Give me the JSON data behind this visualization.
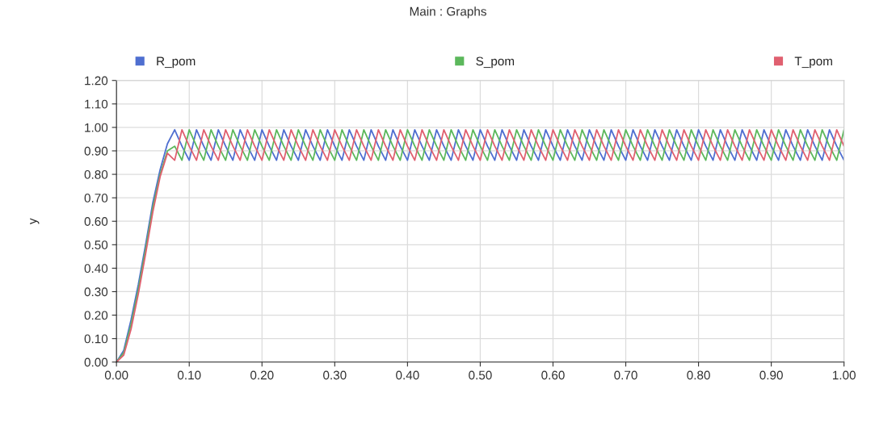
{
  "chart_data": {
    "type": "line",
    "title": "Main : Graphs",
    "ylabel": "y",
    "x": [
      0,
      0.01,
      0.02,
      0.03,
      0.04,
      0.05,
      0.06,
      0.07,
      0.08,
      0.09,
      0.1,
      0.11,
      0.12,
      0.13,
      0.14,
      0.15,
      0.16,
      0.17,
      0.18,
      0.19,
      0.2,
      0.21,
      0.22,
      0.23,
      0.24,
      0.25,
      0.26,
      0.27,
      0.28,
      0.29,
      0.3,
      0.31,
      0.32,
      0.33,
      0.34,
      0.35,
      0.36,
      0.37,
      0.38,
      0.39,
      0.4,
      0.41,
      0.42,
      0.43,
      0.44,
      0.45,
      0.46,
      0.47,
      0.48,
      0.49,
      0.5,
      0.51,
      0.52,
      0.53,
      0.54,
      0.55,
      0.56,
      0.57,
      0.58,
      0.59,
      0.6,
      0.61,
      0.62,
      0.63,
      0.64,
      0.65,
      0.66,
      0.67,
      0.68,
      0.69,
      0.7,
      0.71,
      0.72,
      0.73,
      0.74,
      0.75,
      0.76,
      0.77,
      0.78,
      0.79,
      0.8,
      0.81,
      0.82,
      0.83,
      0.84,
      0.85,
      0.86,
      0.87,
      0.88,
      0.89,
      0.9,
      0.91,
      0.92,
      0.93,
      0.94,
      0.95,
      0.96,
      0.97,
      0.98,
      0.99,
      1.0
    ],
    "series": [
      {
        "name": "R_pom",
        "color": "#4f6fd0",
        "values": [
          0,
          0.05,
          0.18,
          0.33,
          0.5,
          0.68,
          0.82,
          0.93,
          0.99,
          0.92,
          0.86,
          0.99,
          0.92,
          0.86,
          0.99,
          0.92,
          0.86,
          0.99,
          0.92,
          0.86,
          0.99,
          0.92,
          0.86,
          0.99,
          0.92,
          0.86,
          0.99,
          0.92,
          0.86,
          0.99,
          0.92,
          0.86,
          0.99,
          0.92,
          0.86,
          0.99,
          0.92,
          0.86,
          0.99,
          0.92,
          0.86,
          0.99,
          0.92,
          0.86,
          0.99,
          0.92,
          0.86,
          0.99,
          0.92,
          0.86,
          0.99,
          0.92,
          0.86,
          0.99,
          0.92,
          0.86,
          0.99,
          0.92,
          0.86,
          0.99,
          0.92,
          0.86,
          0.99,
          0.92,
          0.86,
          0.99,
          0.92,
          0.86,
          0.99,
          0.92,
          0.86,
          0.99,
          0.92,
          0.86,
          0.99,
          0.92,
          0.86,
          0.99,
          0.92,
          0.86,
          0.99,
          0.92,
          0.86,
          0.99,
          0.92,
          0.86,
          0.99,
          0.92,
          0.86,
          0.99,
          0.92,
          0.86,
          0.99,
          0.92,
          0.86,
          0.99,
          0.92,
          0.86,
          0.99,
          0.92,
          0.86
        ]
      },
      {
        "name": "S_pom",
        "color": "#5cb85c",
        "values": [
          0,
          0.04,
          0.16,
          0.31,
          0.48,
          0.66,
          0.8,
          0.9,
          0.92,
          0.86,
          0.99,
          0.92,
          0.86,
          0.99,
          0.92,
          0.86,
          0.99,
          0.92,
          0.86,
          0.99,
          0.92,
          0.86,
          0.99,
          0.92,
          0.86,
          0.99,
          0.92,
          0.86,
          0.99,
          0.92,
          0.86,
          0.99,
          0.92,
          0.86,
          0.99,
          0.92,
          0.86,
          0.99,
          0.92,
          0.86,
          0.99,
          0.92,
          0.86,
          0.99,
          0.92,
          0.86,
          0.99,
          0.92,
          0.86,
          0.99,
          0.92,
          0.86,
          0.99,
          0.92,
          0.86,
          0.99,
          0.92,
          0.86,
          0.99,
          0.92,
          0.86,
          0.99,
          0.92,
          0.86,
          0.99,
          0.92,
          0.86,
          0.99,
          0.92,
          0.86,
          0.99,
          0.92,
          0.86,
          0.99,
          0.92,
          0.86,
          0.99,
          0.92,
          0.86,
          0.99,
          0.92,
          0.86,
          0.99,
          0.92,
          0.86,
          0.99,
          0.92,
          0.86,
          0.99,
          0.92,
          0.86,
          0.99,
          0.92,
          0.86,
          0.99,
          0.92,
          0.86,
          0.99,
          0.92,
          0.86,
          0.99
        ]
      },
      {
        "name": "T_pom",
        "color": "#e06070",
        "values": [
          0,
          0.03,
          0.14,
          0.29,
          0.46,
          0.64,
          0.79,
          0.89,
          0.86,
          0.99,
          0.92,
          0.86,
          0.99,
          0.92,
          0.86,
          0.99,
          0.92,
          0.86,
          0.99,
          0.92,
          0.86,
          0.99,
          0.92,
          0.86,
          0.99,
          0.92,
          0.86,
          0.99,
          0.92,
          0.86,
          0.99,
          0.92,
          0.86,
          0.99,
          0.92,
          0.86,
          0.99,
          0.92,
          0.86,
          0.99,
          0.92,
          0.86,
          0.99,
          0.92,
          0.86,
          0.99,
          0.92,
          0.86,
          0.99,
          0.92,
          0.86,
          0.99,
          0.92,
          0.86,
          0.99,
          0.92,
          0.86,
          0.99,
          0.92,
          0.86,
          0.99,
          0.92,
          0.86,
          0.99,
          0.92,
          0.86,
          0.99,
          0.92,
          0.86,
          0.99,
          0.92,
          0.86,
          0.99,
          0.92,
          0.86,
          0.99,
          0.92,
          0.86,
          0.99,
          0.92,
          0.86,
          0.99,
          0.92,
          0.86,
          0.99,
          0.92,
          0.86,
          0.99,
          0.92,
          0.86,
          0.99,
          0.92,
          0.86,
          0.99,
          0.92,
          0.86,
          0.99,
          0.92,
          0.86,
          0.99,
          0.92
        ]
      }
    ],
    "xlim": [
      0,
      1
    ],
    "ylim": [
      0,
      1.2
    ],
    "xticks": [
      {
        "value": 0,
        "label": "0.00"
      },
      {
        "value": 0.1,
        "label": "0.10"
      },
      {
        "value": 0.2,
        "label": "0.20"
      },
      {
        "value": 0.3,
        "label": "0.30"
      },
      {
        "value": 0.4,
        "label": "0.40"
      },
      {
        "value": 0.5,
        "label": "0.50"
      },
      {
        "value": 0.6,
        "label": "0.60"
      },
      {
        "value": 0.7,
        "label": "0.70"
      },
      {
        "value": 0.8,
        "label": "0.80"
      },
      {
        "value": 0.9,
        "label": "0.90"
      },
      {
        "value": 1,
        "label": "1.00"
      }
    ],
    "yticks": [
      {
        "value": 0,
        "label": "0.00"
      },
      {
        "value": 0.1,
        "label": "0.10"
      },
      {
        "value": 0.2,
        "label": "0.20"
      },
      {
        "value": 0.3,
        "label": "0.30"
      },
      {
        "value": 0.4,
        "label": "0.40"
      },
      {
        "value": 0.5,
        "label": "0.50"
      },
      {
        "value": 0.6,
        "label": "0.60"
      },
      {
        "value": 0.7,
        "label": "0.70"
      },
      {
        "value": 0.8,
        "label": "0.80"
      },
      {
        "value": 0.9,
        "label": "0.90"
      },
      {
        "value": 1.0,
        "label": "1.00"
      },
      {
        "value": 1.1,
        "label": "1.10"
      },
      {
        "value": 1.2,
        "label": "1.20"
      }
    ],
    "grid": true,
    "legend": "top",
    "marker": "none",
    "line_style": "solid"
  }
}
